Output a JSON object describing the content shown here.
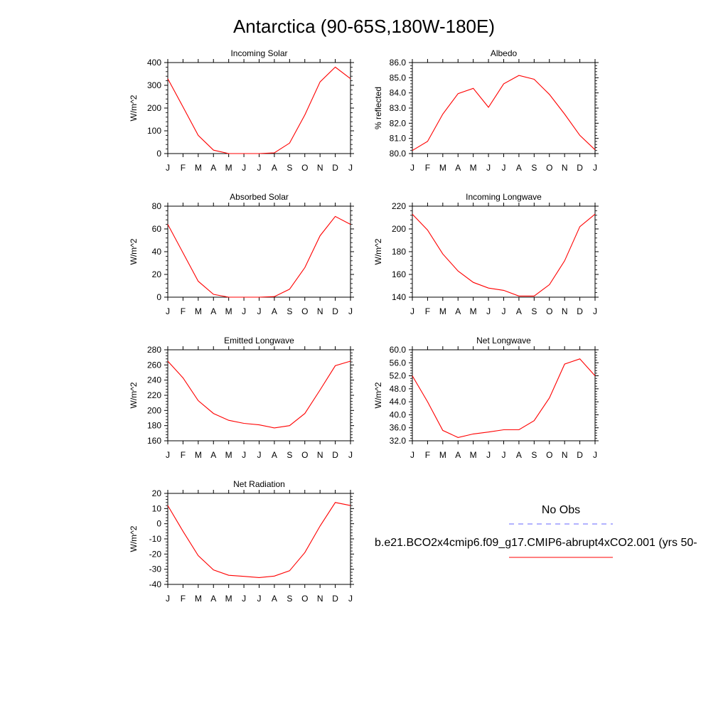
{
  "title": "Antarctica (90-65S,180W-180E)",
  "months": [
    "J",
    "F",
    "M",
    "A",
    "M",
    "J",
    "J",
    "A",
    "S",
    "O",
    "N",
    "D",
    "J"
  ],
  "series_color": "#ff0000",
  "obs_color": "#6666ff",
  "legend": {
    "obs_label": "No Obs",
    "model_label": "b.e21.BCO2x4cmip6.f09_g17.CMIP6-abrupt4xCO2.001 (yrs 50-"
  },
  "chart_data": [
    {
      "type": "line",
      "title": "Incoming Solar",
      "ylabel": "W/m^2",
      "ylim": [
        0,
        400
      ],
      "yticks": [
        0,
        100,
        200,
        300,
        400
      ],
      "ytick_labels": [
        "0",
        "100",
        "200",
        "300",
        "400"
      ],
      "categories": [
        "J",
        "F",
        "M",
        "A",
        "M",
        "J",
        "J",
        "A",
        "S",
        "O",
        "N",
        "D",
        "J"
      ],
      "values": [
        329,
        205,
        80,
        15,
        0,
        0,
        0,
        3,
        46,
        170,
        315,
        380,
        329
      ]
    },
    {
      "type": "line",
      "title": "Albedo",
      "ylabel": "% reflected",
      "ylim": [
        80.0,
        86.0
      ],
      "yticks": [
        80.0,
        81.0,
        82.0,
        83.0,
        84.0,
        85.0,
        86.0
      ],
      "ytick_labels": [
        "80.0",
        "81.0",
        "82.0",
        "83.0",
        "84.0",
        "85.0",
        "86.0"
      ],
      "categories": [
        "J",
        "F",
        "M",
        "A",
        "M",
        "J",
        "J",
        "A",
        "S",
        "O",
        "N",
        "D",
        "J"
      ],
      "values": [
        80.2,
        80.8,
        82.6,
        83.95,
        84.3,
        83.05,
        84.6,
        85.15,
        84.9,
        83.9,
        82.6,
        81.2,
        80.25
      ]
    },
    {
      "type": "line",
      "title": "Absorbed Solar",
      "ylabel": "W/m^2",
      "ylim": [
        0,
        80
      ],
      "yticks": [
        0,
        20,
        40,
        60,
        80
      ],
      "ytick_labels": [
        "0",
        "20",
        "40",
        "60",
        "80"
      ],
      "categories": [
        "J",
        "F",
        "M",
        "A",
        "M",
        "J",
        "J",
        "A",
        "S",
        "O",
        "N",
        "D",
        "J"
      ],
      "values": [
        64,
        39,
        14,
        2.5,
        0,
        0,
        0,
        0.5,
        7,
        26,
        54,
        71,
        64
      ]
    },
    {
      "type": "line",
      "title": "Incoming Longwave",
      "ylabel": "W/m^2",
      "ylim": [
        140,
        220
      ],
      "yticks": [
        140,
        160,
        180,
        200,
        220
      ],
      "ytick_labels": [
        "140",
        "160",
        "180",
        "200",
        "220"
      ],
      "categories": [
        "J",
        "F",
        "M",
        "A",
        "M",
        "J",
        "J",
        "A",
        "S",
        "O",
        "N",
        "D",
        "J"
      ],
      "values": [
        213,
        199,
        178,
        163,
        153,
        148,
        146,
        141,
        141,
        151,
        172,
        202,
        213
      ]
    },
    {
      "type": "line",
      "title": "Emitted Longwave",
      "ylabel": "W/m^2",
      "ylim": [
        160,
        280
      ],
      "yticks": [
        160,
        180,
        200,
        220,
        240,
        260,
        280
      ],
      "ytick_labels": [
        "160",
        "180",
        "200",
        "220",
        "240",
        "260",
        "280"
      ],
      "categories": [
        "J",
        "F",
        "M",
        "A",
        "M",
        "J",
        "J",
        "A",
        "S",
        "O",
        "N",
        "D",
        "J"
      ],
      "values": [
        265,
        243,
        213,
        196,
        187,
        183,
        181,
        177,
        180,
        196,
        227,
        259,
        265
      ]
    },
    {
      "type": "line",
      "title": "Net Longwave",
      "ylabel": "W/m^2",
      "ylim": [
        32.0,
        60.0
      ],
      "yticks": [
        32.0,
        36.0,
        40.0,
        44.0,
        48.0,
        52.0,
        56.0,
        60.0
      ],
      "ytick_labels": [
        "32.0",
        "36.0",
        "40.0",
        "44.0",
        "48.0",
        "52.0",
        "56.0",
        "60.0"
      ],
      "categories": [
        "J",
        "F",
        "M",
        "A",
        "M",
        "J",
        "J",
        "A",
        "S",
        "O",
        "N",
        "D",
        "J"
      ],
      "values": [
        52,
        44,
        35.2,
        33,
        34.1,
        34.7,
        35.4,
        35.4,
        38.2,
        45.2,
        55.6,
        57.2,
        52
      ]
    },
    {
      "type": "line",
      "title": "Net Radiation",
      "ylabel": "W/m^2",
      "ylim": [
        -40,
        20
      ],
      "yticks": [
        -40,
        -30,
        -20,
        -10,
        0,
        10,
        20
      ],
      "ytick_labels": [
        "-40",
        "-30",
        "-20",
        "-10",
        "0",
        "10",
        "20"
      ],
      "categories": [
        "J",
        "F",
        "M",
        "A",
        "M",
        "J",
        "J",
        "A",
        "S",
        "O",
        "N",
        "D",
        "J"
      ],
      "values": [
        12,
        -5,
        -21,
        -30.5,
        -34,
        -34.7,
        -35.5,
        -34.5,
        -31,
        -19,
        -1.5,
        14,
        12
      ]
    }
  ]
}
